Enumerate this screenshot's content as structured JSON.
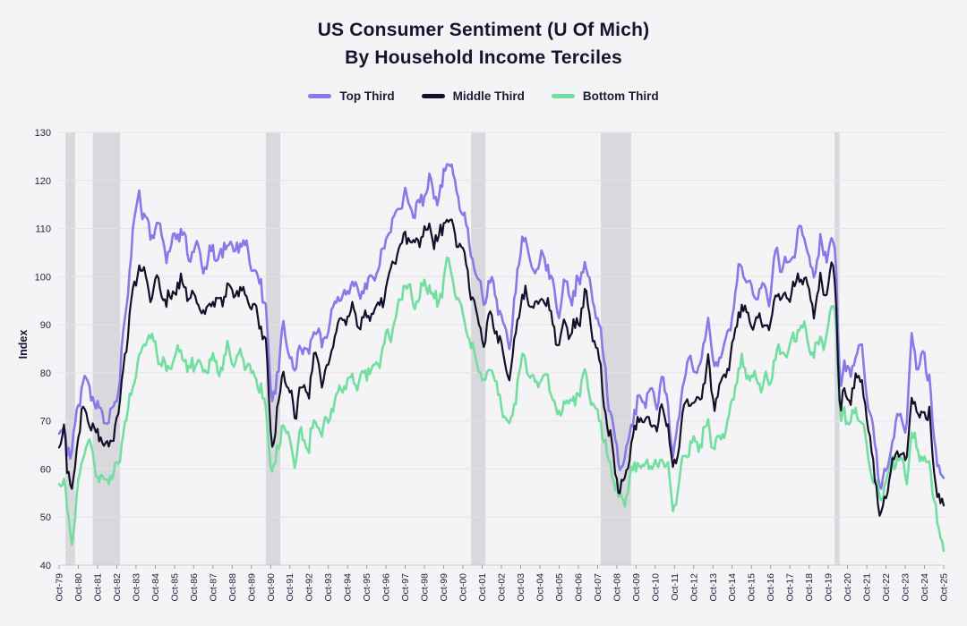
{
  "chart_data": {
    "type": "line",
    "title": "US Consumer Sentiment (U Of Mich)",
    "subtitle": "By Household Income Terciles",
    "ylabel": "Index",
    "ylim": [
      40,
      130
    ],
    "y_ticks": [
      40,
      50,
      60,
      70,
      80,
      90,
      100,
      110,
      120,
      130
    ],
    "x_start": 1979.75,
    "x_end": 2025.75,
    "x_tick_labels": [
      "Oct-79",
      "Oct-80",
      "Oct-81",
      "Oct-82",
      "Oct-83",
      "Oct-84",
      "Oct-85",
      "Oct-86",
      "Oct-87",
      "Oct-88",
      "Oct-89",
      "Oct-90",
      "Oct-91",
      "Oct-92",
      "Oct-93",
      "Oct-94",
      "Oct-95",
      "Oct-96",
      "Oct-97",
      "Oct-98",
      "Oct-99",
      "Oct-00",
      "Oct-01",
      "Oct-02",
      "Oct-03",
      "Oct-04",
      "Oct-05",
      "Oct-06",
      "Oct-07",
      "Oct-08",
      "Oct-09",
      "Oct-10",
      "Oct-11",
      "Oct-12",
      "Oct-13",
      "Oct-14",
      "Oct-15",
      "Oct-16",
      "Oct-17",
      "Oct-18",
      "Oct-19",
      "Oct-20",
      "Oct-21",
      "Oct-22",
      "Oct-23",
      "Oct-24",
      "Oct-25"
    ],
    "grid_on": true,
    "legend_position": "top",
    "grid_color": "#e3e3e8",
    "band_color": "#d9d9dd",
    "background": "#f4f4f6",
    "recessions": [
      [
        1980.08,
        1980.58
      ],
      [
        1981.5,
        1982.92
      ],
      [
        1990.5,
        1991.25
      ],
      [
        2001.17,
        2001.92
      ],
      [
        2007.92,
        2009.5
      ],
      [
        2020.08,
        2020.33
      ]
    ],
    "noise_amplitude": 1.8,
    "x": [
      1979.75,
      1980,
      1980.2,
      1980.42,
      1980.7,
      1981,
      1981.3,
      1981.6,
      1982,
      1982.4,
      1982.8,
      1983.2,
      1983.6,
      1983.9,
      1984.2,
      1984.5,
      1984.9,
      1985.3,
      1985.7,
      1986.1,
      1986.5,
      1986.9,
      1987.3,
      1987.7,
      1988.1,
      1988.5,
      1988.9,
      1989.3,
      1989.7,
      1990.1,
      1990.5,
      1990.8,
      1991.1,
      1991.4,
      1991.7,
      1992,
      1992.3,
      1992.7,
      1993,
      1993.4,
      1993.8,
      1994.2,
      1994.6,
      1995,
      1995.4,
      1995.8,
      1996.2,
      1996.6,
      1997,
      1997.4,
      1997.8,
      1998.2,
      1998.6,
      1999,
      1999.4,
      1999.8,
      2000.05,
      2000.4,
      2000.8,
      2001.1,
      2001.5,
      2001.9,
      2002.2,
      2002.6,
      2002.9,
      2003.2,
      2003.6,
      2003.9,
      2004.2,
      2004.6,
      2005,
      2005.4,
      2005.7,
      2006,
      2006.4,
      2006.8,
      2007.1,
      2007.5,
      2007.9,
      2008.3,
      2008.6,
      2008.9,
      2009.2,
      2009.5,
      2009.8,
      2010.1,
      2010.4,
      2010.8,
      2011.1,
      2011.4,
      2011.65,
      2011.9,
      2012.2,
      2012.5,
      2012.9,
      2013.2,
      2013.5,
      2013.8,
      2014.1,
      2014.5,
      2014.9,
      2015.1,
      2015.5,
      2015.9,
      2016.3,
      2016.7,
      2017,
      2017.4,
      2017.8,
      2018.1,
      2018.3,
      2018.7,
      2019,
      2019.3,
      2019.6,
      2019.9,
      2020.1,
      2020.35,
      2020.6,
      2020.9,
      2021.2,
      2021.5,
      2021.8,
      2022.1,
      2022.45,
      2022.8,
      2023.1,
      2023.5,
      2023.8,
      2024.1,
      2024.4,
      2024.7,
      2025,
      2025.3,
      2025.5,
      2025.75
    ],
    "series": [
      {
        "name": "Top Third",
        "color": "#8878E8",
        "values": [
          67,
          69,
          64,
          63,
          72,
          79,
          76,
          74,
          71,
          70,
          75,
          92,
          110,
          117,
          112,
          108,
          112,
          104,
          108,
          110,
          104,
          107,
          102,
          106,
          103,
          107,
          105,
          108,
          103,
          100,
          94,
          72,
          80,
          90,
          85,
          80,
          86,
          83,
          90,
          86,
          90,
          96,
          95,
          100,
          96,
          99,
          100,
          106,
          110,
          114,
          117,
          113,
          116,
          120,
          116,
          121,
          126,
          117,
          113,
          106,
          100,
          95,
          100,
          94,
          90,
          86,
          100,
          110,
          103,
          101,
          105,
          99,
          92,
          99,
          96,
          99,
          103,
          96,
          89,
          75,
          68,
          60,
          62,
          70,
          73,
          74,
          76,
          74,
          78,
          74,
          62,
          68,
          78,
          82,
          80,
          83,
          92,
          80,
          84,
          88,
          95,
          103,
          99,
          96,
          98,
          96,
          105,
          102,
          104,
          107,
          111,
          105,
          99,
          108,
          103,
          108,
          106,
          78,
          82,
          80,
          84,
          85,
          74,
          68,
          56,
          60,
          66,
          72,
          67,
          88,
          80,
          84,
          80,
          62,
          61,
          58
        ]
      },
      {
        "name": "Middle Third",
        "color": "#131129",
        "values": [
          62,
          71,
          58,
          55,
          66,
          73,
          70,
          67,
          66,
          65,
          70,
          85,
          97,
          102,
          100,
          96,
          99,
          94,
          97,
          99,
          96,
          95,
          92,
          96,
          94,
          97,
          96,
          98,
          94,
          92,
          86,
          63,
          72,
          80,
          77,
          71,
          77,
          75,
          84,
          79,
          82,
          90,
          91,
          94,
          90,
          92,
          93,
          96,
          101,
          105,
          109,
          107,
          109,
          110,
          107,
          111,
          113,
          108,
          105,
          98,
          92,
          86,
          93,
          87,
          84,
          78,
          92,
          96,
          95,
          94,
          96,
          91,
          85,
          91,
          88,
          91,
          96,
          89,
          81,
          68,
          62,
          55,
          58,
          66,
          69,
          71,
          70,
          69,
          73,
          69,
          59,
          63,
          72,
          74,
          73,
          76,
          82,
          73,
          78,
          81,
          88,
          94,
          92,
          90,
          91,
          89,
          97,
          95,
          97,
          99,
          101,
          97,
          93,
          99,
          96,
          101,
          100,
          73,
          76,
          75,
          79,
          79,
          68,
          62,
          49,
          56,
          61,
          64,
          60,
          76,
          69,
          72,
          71,
          57,
          55,
          51
        ]
      },
      {
        "name": "Bottom Third",
        "color": "#72DFA0",
        "values": [
          57,
          59,
          50,
          45,
          55,
          63,
          66,
          60,
          57,
          58,
          60,
          70,
          78,
          82,
          86,
          88,
          84,
          80,
          83,
          85,
          80,
          83,
          80,
          84,
          80,
          84,
          82,
          84,
          80,
          78,
          72,
          58,
          63,
          70,
          66,
          62,
          67,
          64,
          70,
          68,
          71,
          75,
          77,
          79,
          78,
          81,
          80,
          86,
          88,
          93,
          100,
          94,
          97,
          98,
          94,
          100,
          104,
          96,
          92,
          86,
          82,
          78,
          82,
          76,
          72,
          68,
          78,
          84,
          80,
          77,
          80,
          76,
          70,
          75,
          74,
          76,
          80,
          74,
          70,
          62,
          58,
          53,
          54,
          60,
          61,
          60,
          62,
          60,
          62,
          60,
          52,
          55,
          62,
          64,
          65,
          66,
          70,
          64,
          67,
          70,
          77,
          82,
          80,
          78,
          78,
          78,
          84,
          84,
          86,
          88,
          90,
          87,
          83,
          88,
          86,
          93,
          96,
          70,
          72,
          70,
          72,
          70,
          63,
          58,
          54,
          58,
          61,
          62,
          57,
          67,
          63,
          62,
          61,
          52,
          47,
          44
        ]
      }
    ]
  }
}
